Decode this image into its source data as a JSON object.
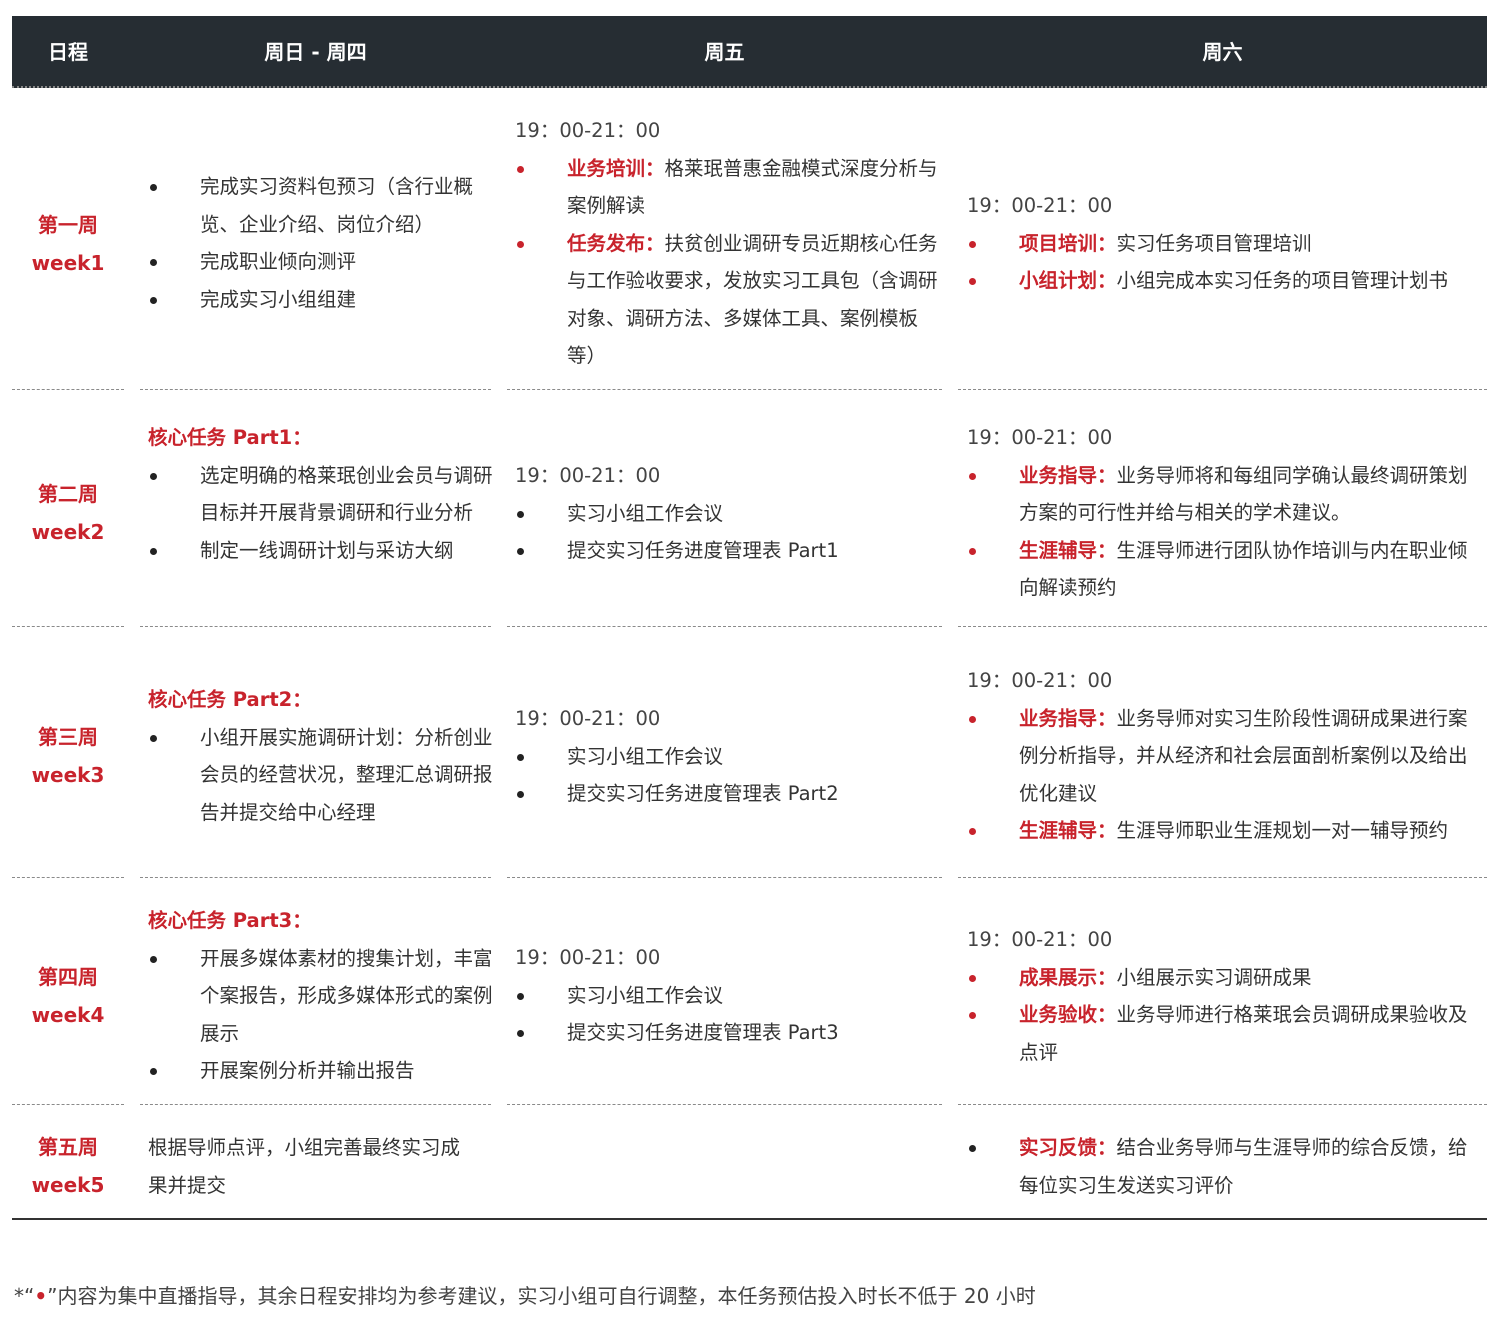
{
  "header": {
    "col0": "日程",
    "col1": "周日 - 周四",
    "col2": "周五",
    "col3": "周六"
  },
  "weeks": [
    {
      "cn": "第一周",
      "en": "week1",
      "sunthu": [
        "完成实习资料包预习（含行业概览、企业介绍、岗位介绍）",
        "完成职业倾向测评",
        "完成实习小组组建"
      ],
      "fri_time": "19：00-21：00",
      "fri": [
        {
          "kw": "业务培训：",
          "text": "格莱珉普惠金融模式深度分析与案例解读"
        },
        {
          "kw": "任务发布：",
          "text": "扶贫创业调研专员近期核心任务与工作验收要求，发放实习工具包（含调研对象、调研方法、多媒体工具、案例模板等）"
        }
      ],
      "sat_time": "19：00-21：00",
      "sat": [
        {
          "kw": "项目培训：",
          "text": "实习任务项目管理培训"
        },
        {
          "kw": "小组计划：",
          "text": "小组完成本实习任务的项目管理计划书"
        }
      ]
    },
    {
      "cn": "第二周",
      "en": "week2",
      "sunthu_title": "核心任务 Part1：",
      "sunthu": [
        "选定明确的格莱珉创业会员与调研目标并开展背景调研和行业分析",
        "制定一线调研计划与采访大纲"
      ],
      "fri_time": "19：00-21：00",
      "fri": [
        "实习小组工作会议",
        "提交实习任务进度管理表 Part1"
      ],
      "sat_time": "19：00-21：00",
      "sat": [
        {
          "kw": "业务指导：",
          "text": "业务导师将和每组同学确认最终调研策划方案的可行性并给与相关的学术建议。"
        },
        {
          "kw": "生涯辅导：",
          "text": "生涯导师进行团队协作培训与内在职业倾向解读预约"
        }
      ]
    },
    {
      "cn": "第三周",
      "en": "week3",
      "sunthu_title": "核心任务 Part2：",
      "sunthu": [
        "小组开展实施调研计划：分析创业会员的经营状况，整理汇总调研报告并提交给中心经理"
      ],
      "fri_time": "19：00-21：00",
      "fri": [
        "实习小组工作会议",
        "提交实习任务进度管理表 Part2"
      ],
      "sat_time": "19：00-21：00",
      "sat": [
        {
          "kw": "业务指导：",
          "text": "业务导师对实习生阶段性调研成果进行案例分析指导，并从经济和社会层面剖析案例以及给出优化建议"
        },
        {
          "kw": "生涯辅导：",
          "text": "生涯导师职业生涯规划一对一辅导预约"
        }
      ]
    },
    {
      "cn": "第四周",
      "en": "week4",
      "sunthu_title": "核心任务 Part3：",
      "sunthu": [
        "开展多媒体素材的搜集计划，丰富个案报告，形成多媒体形式的案例展示",
        "开展案例分析并输出报告"
      ],
      "fri_time": "19：00-21：00",
      "fri": [
        "实习小组工作会议",
        "提交实习任务进度管理表 Part3"
      ],
      "sat_time": "19：00-21：00",
      "sat": [
        {
          "kw": "成果展示：",
          "text": "小组展示实习调研成果"
        },
        {
          "kw": "业务验收：",
          "text": "业务导师进行格莱珉会员调研成果验收及点评"
        }
      ]
    },
    {
      "cn": "第五周",
      "en": "week5",
      "sunthu_plain": "根据导师点评，小组完善最终实习成果并提交",
      "sat": [
        {
          "kw": "实习反馈：",
          "text": "结合业务导师与生涯导师的综合反馈，给每位实习生发送实习评价"
        }
      ]
    }
  ],
  "footnote": {
    "prefix": "*“",
    "dot": "•",
    "suffix": "”内容为集中直播指导，其余日程安排均为参考建议，实习小组可自行调整，本任务预估投入时长不低于 20 小时"
  },
  "colors": {
    "header_bg": "#262d33",
    "accent": "#c8232c"
  }
}
